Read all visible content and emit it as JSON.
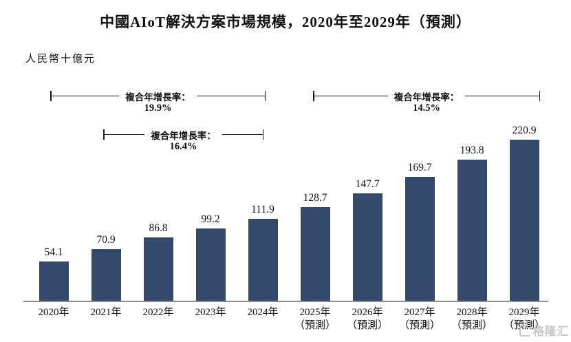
{
  "title": "中國AIoT解決方案市場規模，2020年至2029年（預測）",
  "unit_label": "人民幣十億元",
  "annotations": [
    {
      "label": "複合年增長率：",
      "value": "19.9%",
      "from": "2020年",
      "to": "2024年"
    },
    {
      "label": "複合年增長率：",
      "value": "16.4%",
      "from": "2021年",
      "to": "2024年"
    },
    {
      "label": "複合年增長率：",
      "value": "14.5%",
      "from": "2025年",
      "to": "2029年"
    }
  ],
  "watermark": "格隆汇",
  "chart_data": {
    "type": "bar",
    "title": "中國AIoT解決方案市場規模，2020年至2029年（預測）",
    "ylabel": "人民幣十億元",
    "categories": [
      "2020年",
      "2021年",
      "2022年",
      "2023年",
      "2024年",
      "2025年（預測）",
      "2026年（預測）",
      "2027年（預測）",
      "2028年（預測）",
      "2029年（預測）"
    ],
    "values": [
      54.1,
      70.9,
      86.8,
      99.2,
      111.9,
      128.7,
      147.7,
      169.7,
      193.8,
      220.9
    ],
    "value_labels": true,
    "bar_color": "#344A6C",
    "axis_color": "#8c8c8c",
    "ylim": [
      0,
      240
    ],
    "grid": false,
    "legend": false
  }
}
